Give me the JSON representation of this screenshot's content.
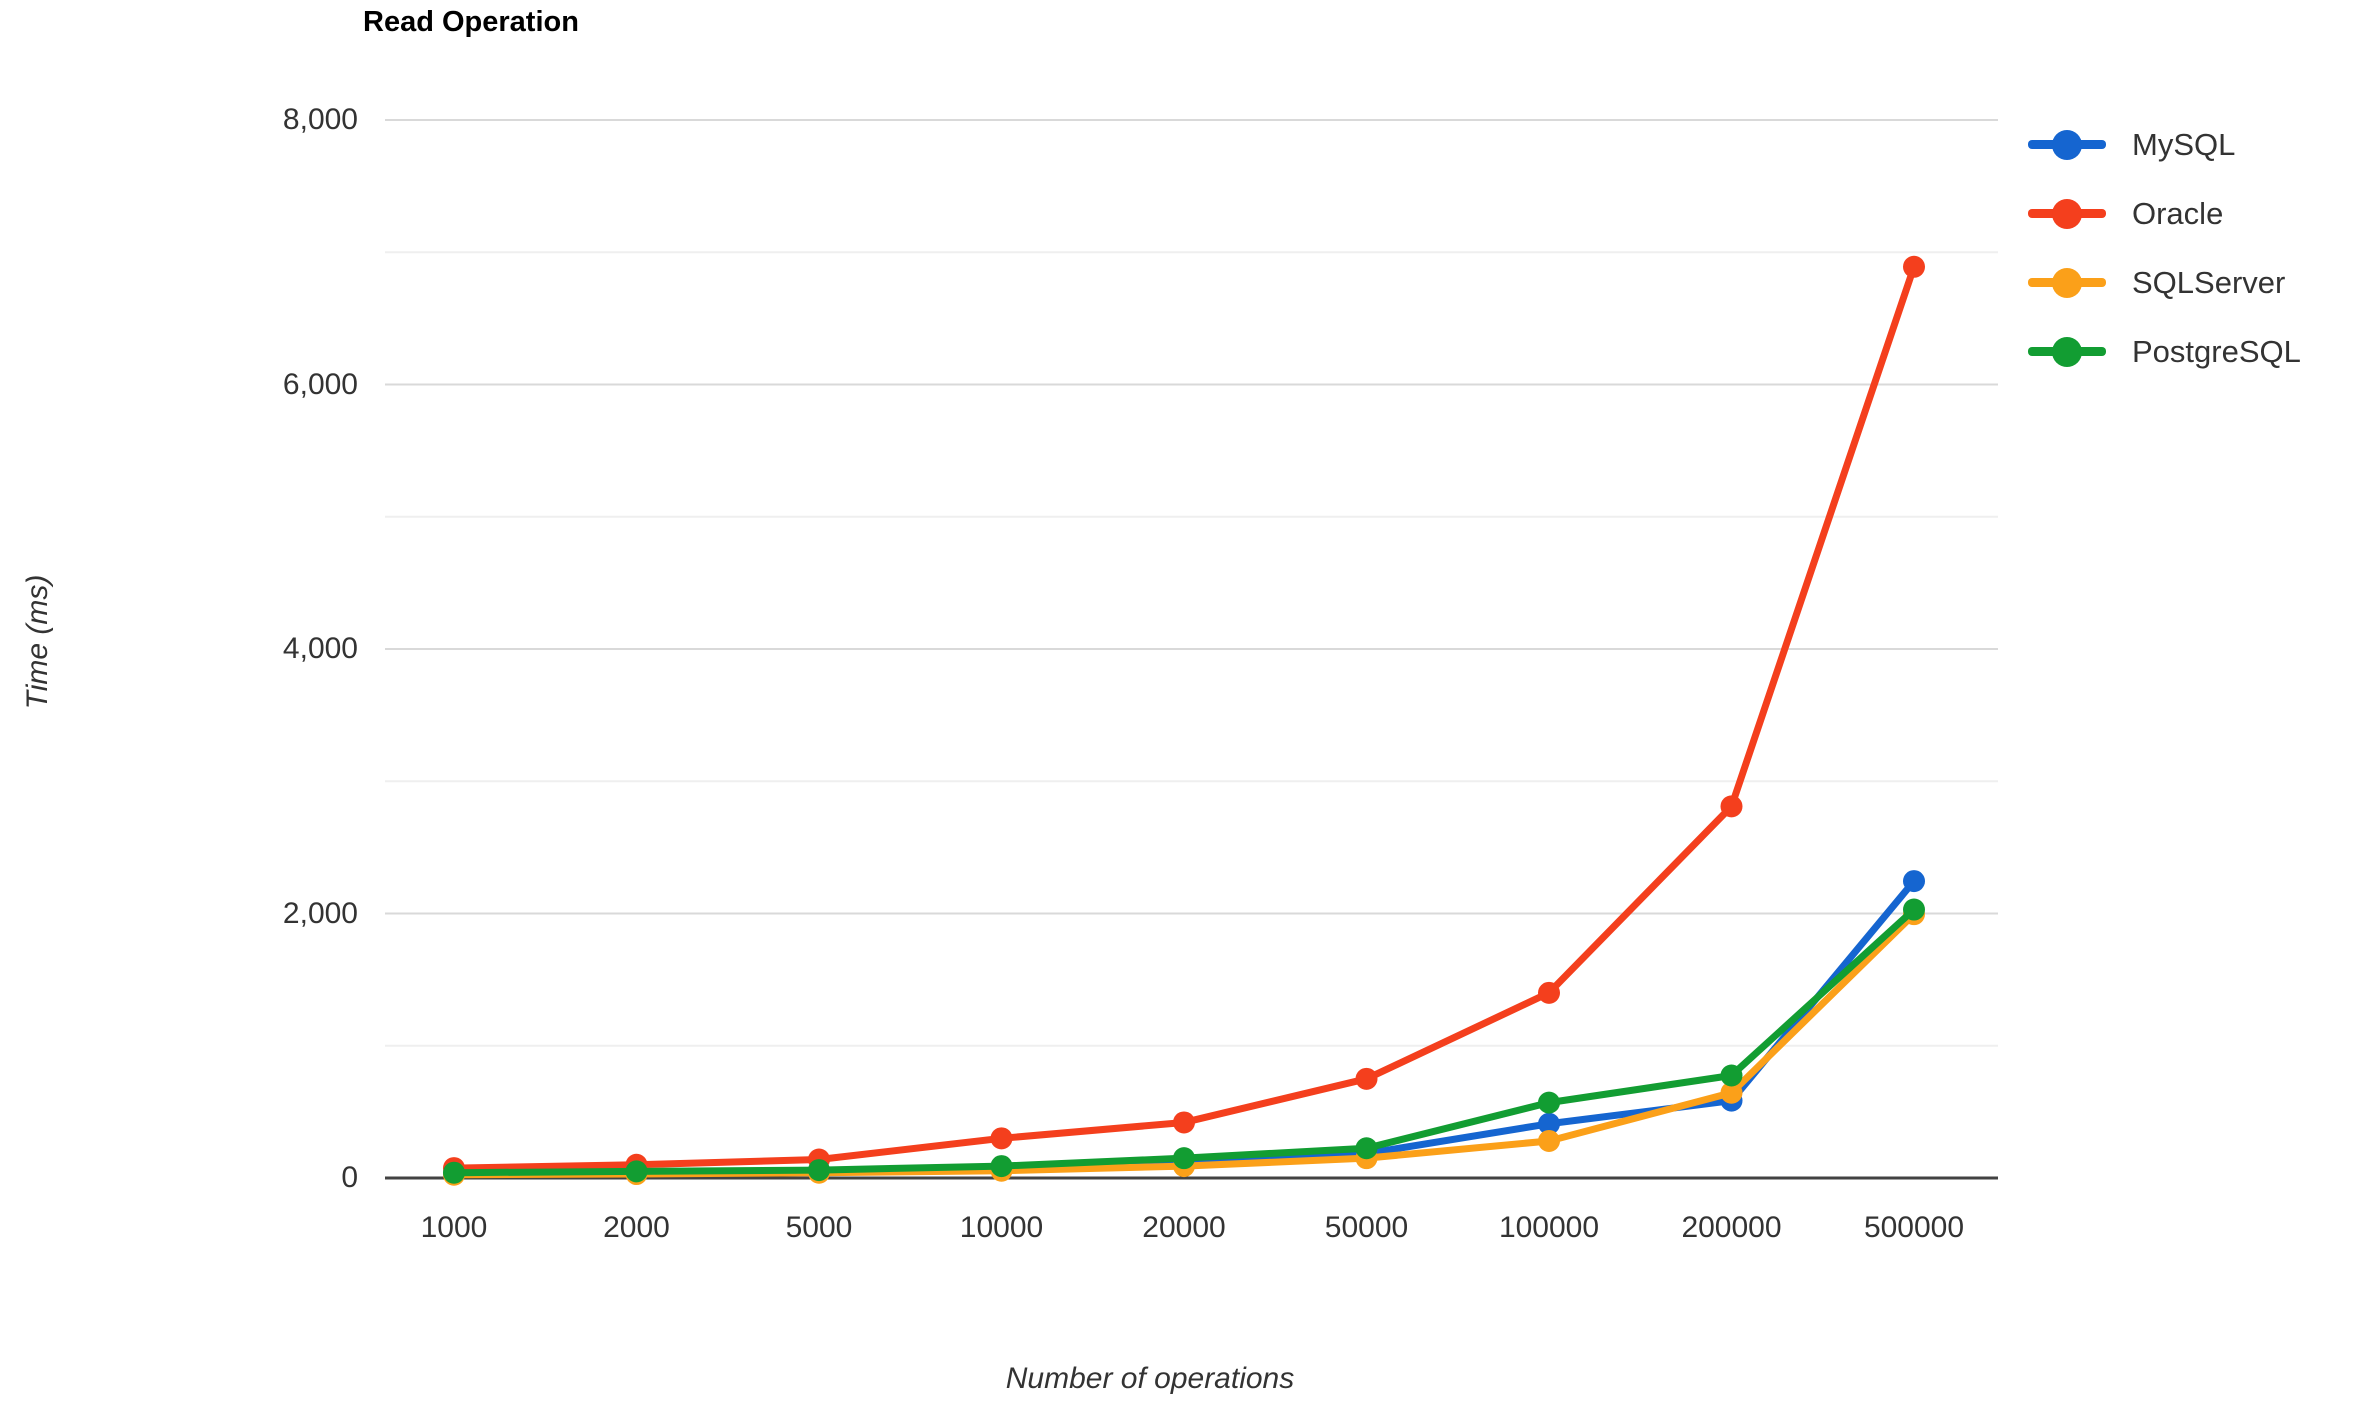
{
  "chart_data": {
    "type": "line",
    "title": "Read Operation",
    "xlabel": "Number of operations",
    "ylabel": "Time (ms)",
    "categories": [
      "1000",
      "2000",
      "5000",
      "10000",
      "20000",
      "50000",
      "100000",
      "200000",
      "500000"
    ],
    "y_ticks": [
      {
        "label": "0",
        "value": 0
      },
      {
        "label": "2,000",
        "value": 2000
      },
      {
        "label": "4,000",
        "value": 4000
      },
      {
        "label": "6,000",
        "value": 6000
      },
      {
        "label": "8,000",
        "value": 8000
      }
    ],
    "minor_gridline_values": [
      1000,
      3000,
      5000,
      7000
    ],
    "ylim": [
      0,
      8000
    ],
    "grid": true,
    "legend_position": "right",
    "series": [
      {
        "name": "MySQL",
        "color": "#1565d0",
        "values": [
          35,
          45,
          55,
          65,
          110,
          185,
          410,
          585,
          2245
        ]
      },
      {
        "name": "Oracle",
        "color": "#f43f1d",
        "values": [
          75,
          100,
          140,
          300,
          420,
          750,
          1400,
          2810,
          6890
        ]
      },
      {
        "name": "SQLServer",
        "color": "#fba019",
        "values": [
          25,
          30,
          40,
          55,
          90,
          150,
          280,
          645,
          1995
        ]
      },
      {
        "name": "PostgreSQL",
        "color": "#129d32",
        "values": [
          40,
          50,
          60,
          90,
          150,
          225,
          570,
          775,
          2030
        ]
      }
    ]
  },
  "colors": {
    "grid_major": "#d9d9d9",
    "grid_minor": "#efefef",
    "axis_baseline": "#424242",
    "tick_text": "#333333",
    "title_text": "#000000"
  }
}
